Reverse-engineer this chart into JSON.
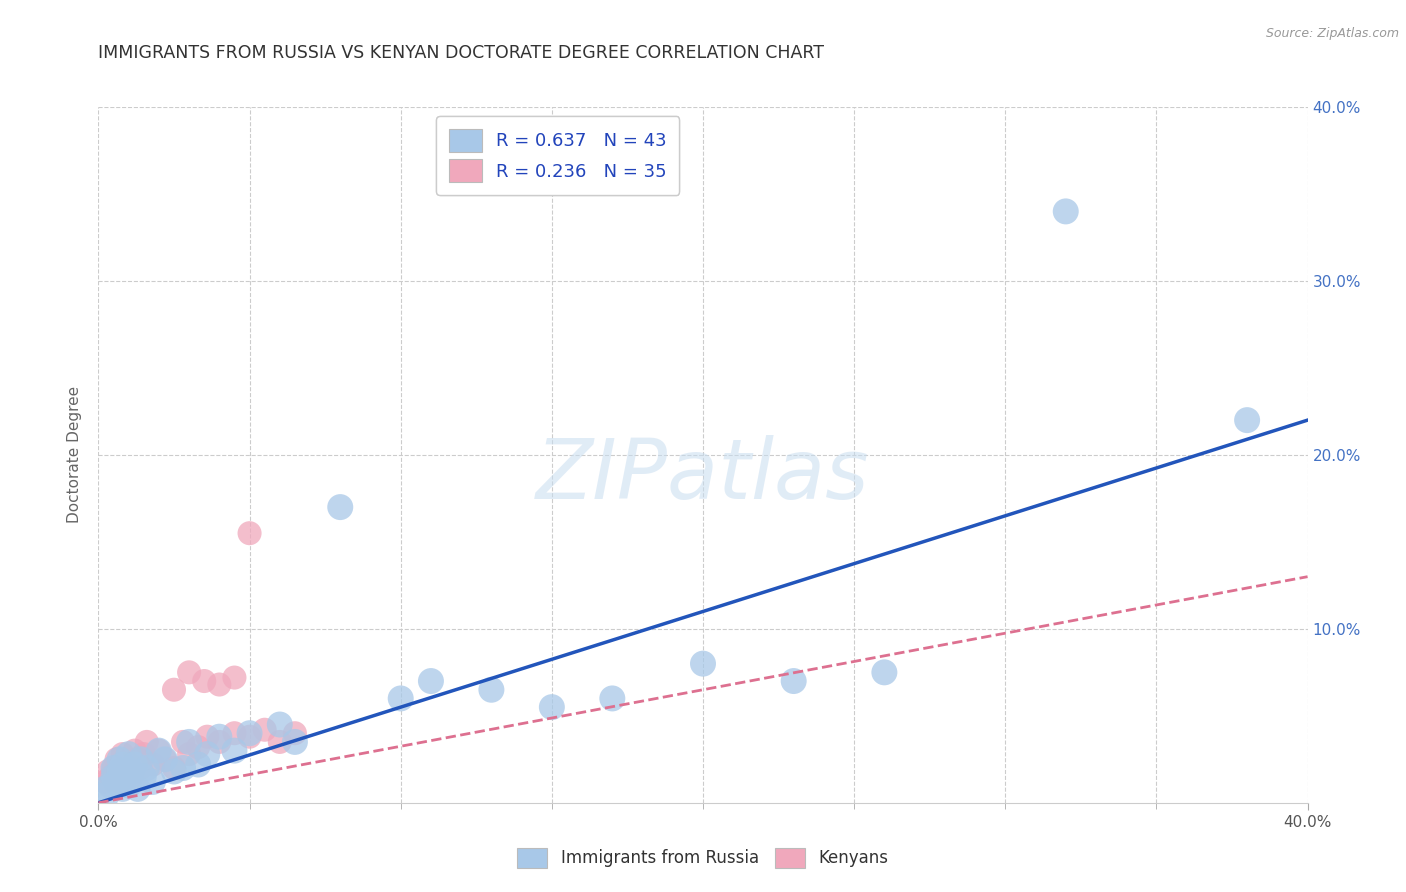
{
  "title": "IMMIGRANTS FROM RUSSIA VS KENYAN DOCTORATE DEGREE CORRELATION CHART",
  "source": "Source: ZipAtlas.com",
  "ylabel": "Doctorate Degree",
  "xlim": [
    0.0,
    0.4
  ],
  "ylim": [
    0.0,
    0.4
  ],
  "blue_color": "#a8c8e8",
  "pink_color": "#f0a8bc",
  "blue_line_color": "#2255bb",
  "pink_line_color": "#dd7090",
  "legend_r_blue": "R = 0.637",
  "legend_n_blue": "N = 43",
  "legend_r_pink": "R = 0.236",
  "legend_n_pink": "N = 35",
  "legend_label_blue": "Immigrants from Russia",
  "legend_label_pink": "Kenyans",
  "watermark": "ZIPatlas",
  "background_color": "#ffffff",
  "grid_color": "#cccccc",
  "blue_scatter_x": [
    0.002,
    0.003,
    0.004,
    0.005,
    0.005,
    0.006,
    0.007,
    0.007,
    0.008,
    0.008,
    0.009,
    0.01,
    0.01,
    0.011,
    0.012,
    0.013,
    0.014,
    0.015,
    0.016,
    0.018,
    0.02,
    0.022,
    0.025,
    0.028,
    0.03,
    0.033,
    0.036,
    0.04,
    0.045,
    0.05,
    0.06,
    0.065,
    0.08,
    0.1,
    0.11,
    0.13,
    0.15,
    0.17,
    0.2,
    0.23,
    0.26,
    0.32,
    0.38
  ],
  "blue_scatter_y": [
    0.008,
    0.005,
    0.01,
    0.015,
    0.02,
    0.012,
    0.018,
    0.025,
    0.008,
    0.022,
    0.015,
    0.01,
    0.028,
    0.018,
    0.022,
    0.008,
    0.025,
    0.015,
    0.02,
    0.012,
    0.03,
    0.025,
    0.018,
    0.02,
    0.035,
    0.022,
    0.028,
    0.038,
    0.03,
    0.04,
    0.045,
    0.035,
    0.17,
    0.06,
    0.07,
    0.065,
    0.055,
    0.06,
    0.08,
    0.07,
    0.075,
    0.34,
    0.22
  ],
  "pink_scatter_x": [
    0.002,
    0.003,
    0.004,
    0.005,
    0.006,
    0.007,
    0.008,
    0.009,
    0.01,
    0.011,
    0.012,
    0.013,
    0.014,
    0.015,
    0.016,
    0.018,
    0.02,
    0.022,
    0.025,
    0.028,
    0.03,
    0.033,
    0.036,
    0.04,
    0.045,
    0.05,
    0.055,
    0.06,
    0.065,
    0.05,
    0.025,
    0.03,
    0.035,
    0.04,
    0.045
  ],
  "pink_scatter_y": [
    0.012,
    0.018,
    0.015,
    0.02,
    0.025,
    0.012,
    0.028,
    0.018,
    0.022,
    0.015,
    0.03,
    0.025,
    0.02,
    0.028,
    0.035,
    0.022,
    0.03,
    0.025,
    0.02,
    0.035,
    0.028,
    0.032,
    0.038,
    0.035,
    0.04,
    0.038,
    0.042,
    0.035,
    0.04,
    0.155,
    0.065,
    0.075,
    0.07,
    0.068,
    0.072
  ],
  "blue_line_x0": 0.0,
  "blue_line_y0": 0.0,
  "blue_line_x1": 0.4,
  "blue_line_y1": 0.22,
  "pink_line_x0": 0.0,
  "pink_line_y0": 0.0,
  "pink_line_x1": 0.4,
  "pink_line_y1": 0.13,
  "blue_bubble_size": 350,
  "pink_bubble_size": 300
}
